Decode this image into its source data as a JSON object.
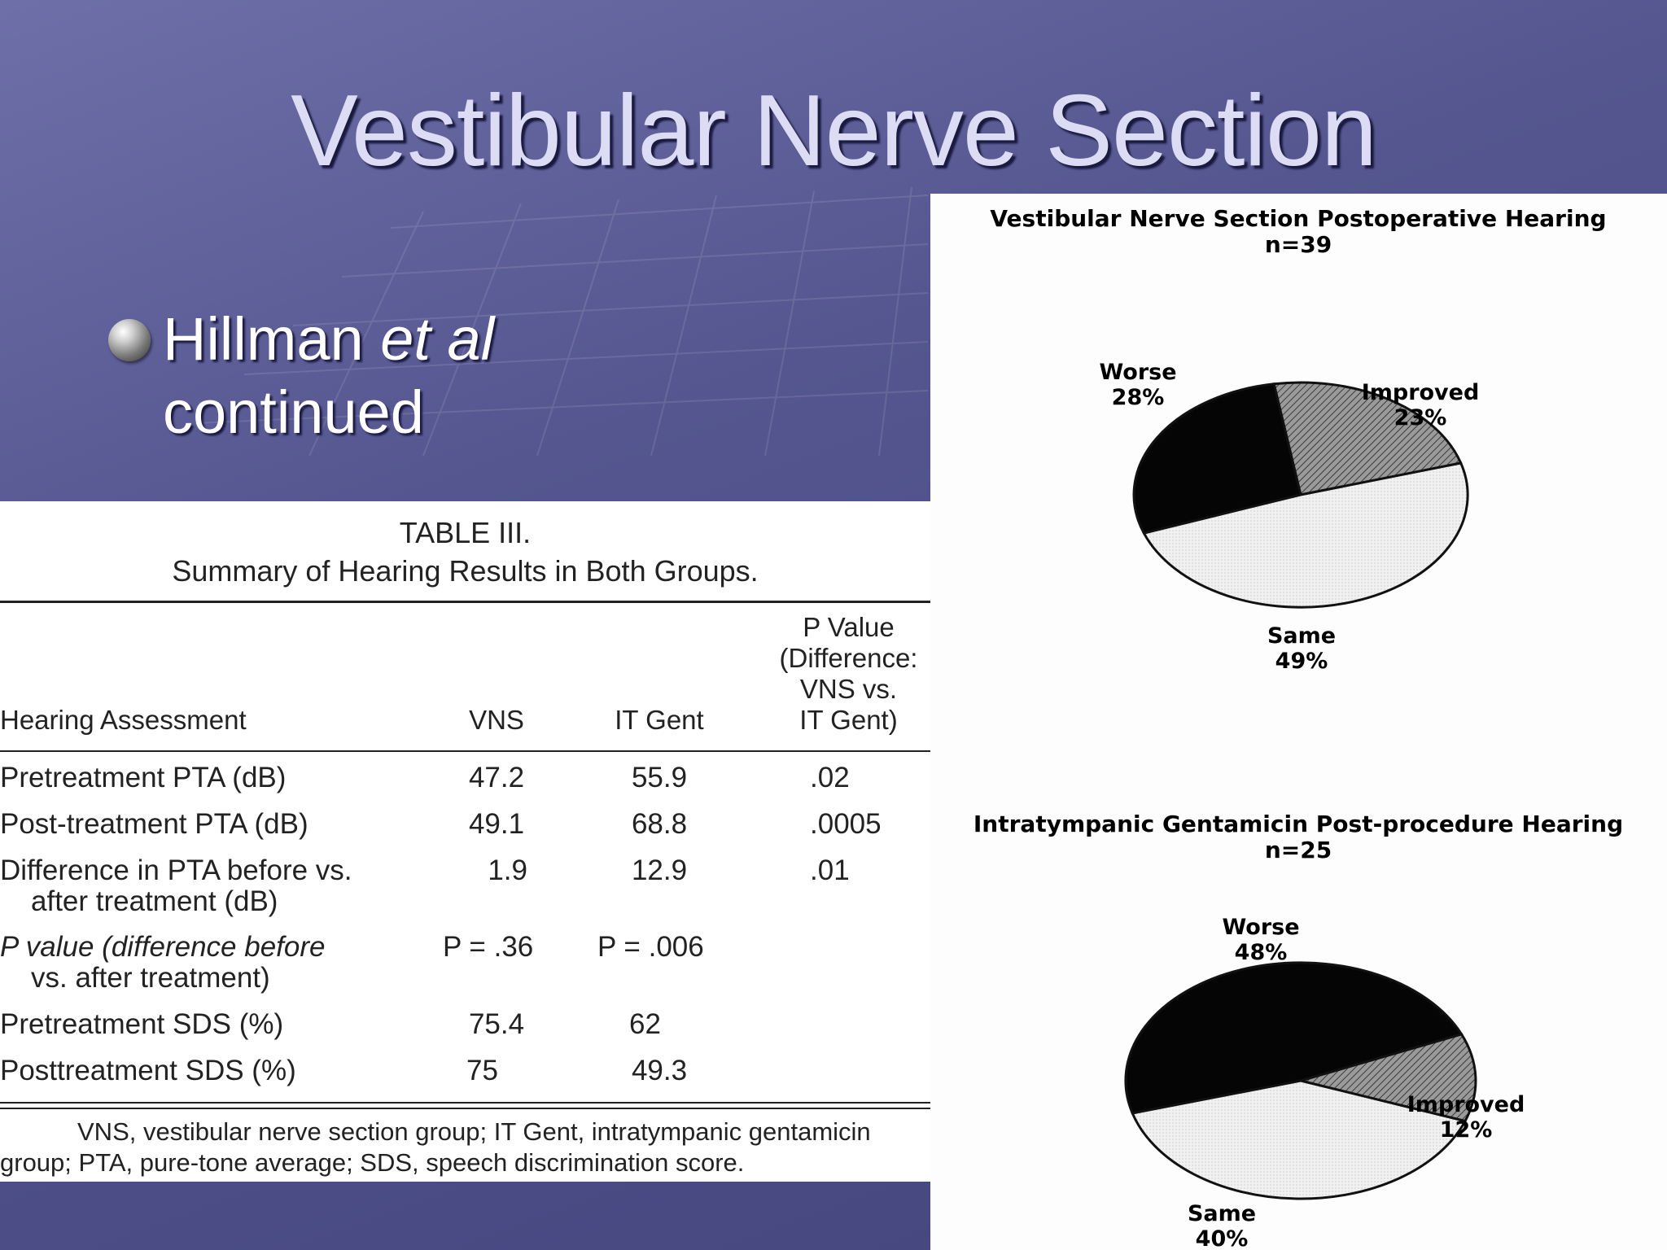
{
  "slide": {
    "title": "Vestibular Nerve Section",
    "bullet_main": "Hillman ",
    "bullet_italic": "et al",
    "bullet_cont": "continued"
  },
  "table": {
    "caption_line1": "TABLE III.",
    "caption_line2": "Summary of Hearing Results in Both Groups.",
    "headers": {
      "assessment": "Hearing Assessment",
      "vns": "VNS",
      "itgent": "IT Gent",
      "pvalue_lines": [
        "P Value",
        "(Difference:",
        "VNS vs.",
        "IT Gent)"
      ]
    },
    "rows": [
      {
        "label": [
          "Pretreatment PTA (dB)"
        ],
        "vns": "47.2",
        "itgent": "55.9",
        "p": ".02"
      },
      {
        "label": [
          "Post-treatment PTA (dB)"
        ],
        "vns": "49.1",
        "itgent": "68.8",
        "p": ".0005"
      },
      {
        "label": [
          "Difference in PTA before vs.",
          "after treatment (dB)"
        ],
        "vns": "1.9",
        "itgent": "12.9",
        "p": ".01"
      },
      {
        "label": [
          "P value (difference before",
          "vs. after treatment)"
        ],
        "vns": "P = .36",
        "itgent": "P = .006",
        "p": ""
      },
      {
        "label": [
          "Pretreatment SDS (%)"
        ],
        "vns": "75.4",
        "itgent": "62",
        "p": ""
      },
      {
        "label": [
          "Posttreatment SDS (%)"
        ],
        "vns": "75",
        "itgent": "49.3",
        "p": ""
      }
    ],
    "footnote_line1": "VNS, vestibular nerve section group; IT Gent, intratympanic gentamicin",
    "footnote_line2": "group; PTA, pure-tone average; SDS, speech discrimination score."
  },
  "chart_data": [
    {
      "type": "pie",
      "title": "Vestibular Nerve Section Postoperative Hearing",
      "subtitle": "n=39",
      "categories": [
        "Worse",
        "Improved",
        "Same"
      ],
      "values": [
        28,
        23,
        49
      ],
      "labels": [
        "28%",
        "23%",
        "49%"
      ],
      "colors": [
        "#050505",
        "#8a8a8a",
        "#ececec"
      ]
    },
    {
      "type": "pie",
      "title": "Intratympanic Gentamicin Post-procedure Hearing",
      "subtitle": "n=25",
      "categories": [
        "Worse",
        "Improved",
        "Same"
      ],
      "values": [
        48,
        12,
        40
      ],
      "labels": [
        "48%",
        "12%",
        "40%"
      ],
      "colors": [
        "#050505",
        "#8a8a8a",
        "#ececec"
      ]
    }
  ]
}
